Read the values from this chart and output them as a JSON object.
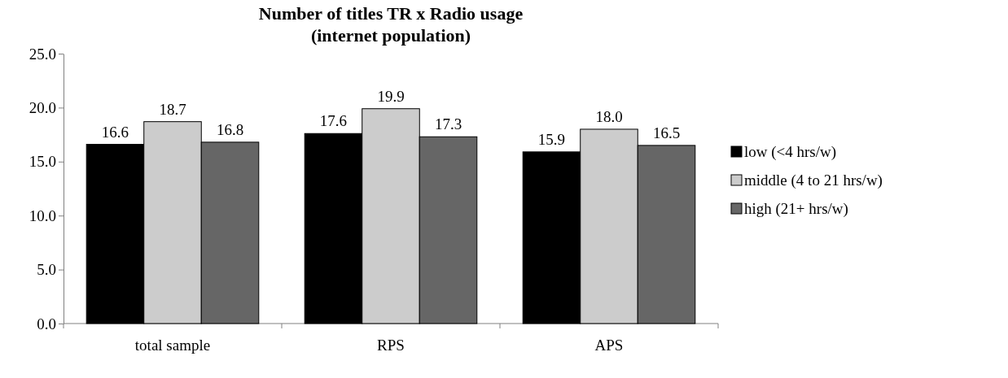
{
  "chart_data": {
    "type": "bar",
    "title": "Number of titles TR x Radio usage\n(internet population)",
    "categories": [
      "total sample",
      "RPS",
      "APS"
    ],
    "series": [
      {
        "name": "low (<4 hrs/w)",
        "color": "#000000",
        "values": [
          16.6,
          17.6,
          15.9
        ],
        "value_labels": [
          "16.6",
          "17.6",
          "15.9"
        ]
      },
      {
        "name": "middle (4 to 21 hrs/w)",
        "color": "#cccccc",
        "values": [
          18.7,
          19.9,
          18.0
        ],
        "value_labels": [
          "18.7",
          "19.9",
          "18.0"
        ]
      },
      {
        "name": "high (21+ hrs/w)",
        "color": "#666666",
        "values": [
          16.8,
          17.3,
          16.5
        ],
        "value_labels": [
          "16.8",
          "17.3",
          "16.5"
        ]
      }
    ],
    "ylim": [
      0,
      25
    ],
    "yticks": [
      {
        "value": 0,
        "label": "0.0"
      },
      {
        "value": 5,
        "label": "5.0"
      },
      {
        "value": 10,
        "label": "10.0"
      },
      {
        "value": 15,
        "label": "15.0"
      },
      {
        "value": 20,
        "label": "20.0"
      },
      {
        "value": 25,
        "label": "25.0"
      }
    ],
    "grid": false,
    "legend": "right"
  }
}
